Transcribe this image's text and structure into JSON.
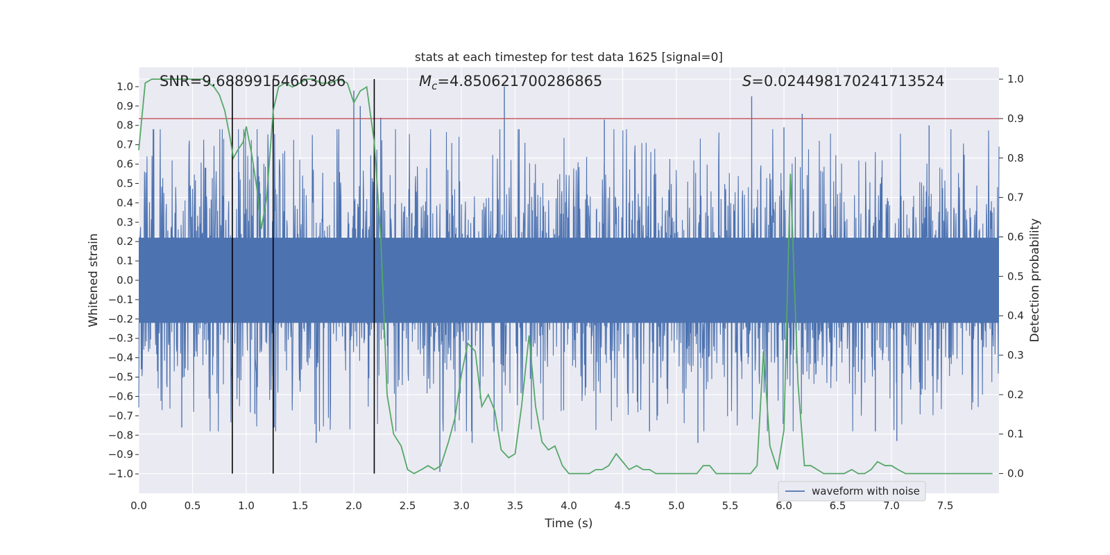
{
  "chart_data": {
    "type": "line",
    "title": "stats at each timestep for test data 1625 [signal=0]",
    "xlabel": "Time (s)",
    "ylabel": "Whitened strain",
    "y2label": "Detection probability",
    "xlim": [
      0.0,
      8.0
    ],
    "ylim": [
      -1.1,
      1.1
    ],
    "y2lim": [
      -0.05,
      1.03
    ],
    "xticks": [
      "0.0",
      "0.5",
      "1.0",
      "1.5",
      "2.0",
      "2.5",
      "3.0",
      "3.5",
      "4.0",
      "4.5",
      "5.0",
      "5.5",
      "6.0",
      "6.5",
      "7.0",
      "7.5"
    ],
    "yticks": [
      "1.0",
      "0.9",
      "0.8",
      "0.7",
      "0.6",
      "0.5",
      "0.4",
      "0.3",
      "0.2",
      "0.1",
      "0.0",
      "−0.1",
      "−0.2",
      "−0.3",
      "−0.4",
      "−0.5",
      "−0.6",
      "−0.7",
      "−0.8",
      "−0.9",
      "−1.0"
    ],
    "y2ticks": [
      "1.0",
      "0.9",
      "0.8",
      "0.7",
      "0.6",
      "0.5",
      "0.4",
      "0.3",
      "0.2",
      "0.1",
      "0.0"
    ],
    "grid": true,
    "legend": {
      "position": "bottom-right",
      "entries": [
        "waveform with noise"
      ]
    },
    "annotations": {
      "snr": "SNR=9.68899154663086",
      "mc_symbol": "M",
      "mc_sub": "c",
      "mc_value": "=4.850621700286865",
      "s_symbol": "S",
      "s_value": "=0.024498170241713524"
    },
    "threshold": {
      "value": 0.9,
      "axis": "y2",
      "color": "#c44e52"
    },
    "vertical_markers": [
      0.87,
      1.25,
      2.19
    ],
    "series": [
      {
        "name": "waveform with noise",
        "axis": "y",
        "color": "#4c72b0",
        "kind": "noise",
        "samples": 2400,
        "envelope_sigma": 0.32,
        "spikes": [
          {
            "x": 0.4,
            "y": -0.76
          },
          {
            "x": 0.87,
            "y": 0.53
          },
          {
            "x": 1.08,
            "y": -0.69
          },
          {
            "x": 1.26,
            "y": -0.76
          },
          {
            "x": 1.65,
            "y": -0.84
          },
          {
            "x": 2.0,
            "y": 0.98
          },
          {
            "x": 2.06,
            "y": 0.9
          },
          {
            "x": 2.25,
            "y": 0.84
          },
          {
            "x": 2.8,
            "y": -0.99
          },
          {
            "x": 3.1,
            "y": -0.84
          },
          {
            "x": 3.4,
            "y": 1.0
          },
          {
            "x": 4.33,
            "y": 0.83
          },
          {
            "x": 4.75,
            "y": -0.78
          },
          {
            "x": 5.2,
            "y": -0.84
          },
          {
            "x": 5.7,
            "y": 0.95
          },
          {
            "x": 6.0,
            "y": 0.79
          },
          {
            "x": 6.17,
            "y": 0.86
          },
          {
            "x": 6.85,
            "y": -0.78
          },
          {
            "x": 7.05,
            "y": -0.83
          },
          {
            "x": 7.35,
            "y": 0.8
          }
        ]
      },
      {
        "name": "detection probability",
        "axis": "y2",
        "color": "#55a868",
        "x": [
          0.0,
          0.06,
          0.12,
          0.2,
          0.3,
          0.4,
          0.5,
          0.6,
          0.65,
          0.7,
          0.75,
          0.8,
          0.85,
          0.88,
          0.92,
          0.97,
          1.0,
          1.05,
          1.1,
          1.14,
          1.19,
          1.25,
          1.3,
          1.36,
          1.43,
          1.5,
          1.56,
          1.62,
          1.7,
          1.78,
          1.86,
          1.94,
          2.0,
          2.06,
          2.12,
          2.19,
          2.25,
          2.31,
          2.37,
          2.44,
          2.5,
          2.56,
          2.63,
          2.69,
          2.75,
          2.81,
          2.88,
          2.94,
          3.0,
          3.06,
          3.13,
          3.19,
          3.25,
          3.31,
          3.37,
          3.44,
          3.5,
          3.56,
          3.63,
          3.69,
          3.75,
          3.81,
          3.87,
          3.94,
          4.0,
          4.06,
          4.13,
          4.19,
          4.25,
          4.31,
          4.37,
          4.44,
          4.5,
          4.56,
          4.63,
          4.69,
          4.75,
          4.81,
          4.87,
          4.94,
          5.0,
          5.06,
          5.13,
          5.19,
          5.25,
          5.31,
          5.37,
          5.44,
          5.5,
          5.56,
          5.63,
          5.69,
          5.75,
          5.81,
          5.87,
          5.94,
          6.0,
          6.06,
          6.13,
          6.19,
          6.25,
          6.31,
          6.37,
          6.44,
          6.5,
          6.56,
          6.63,
          6.69,
          6.75,
          6.81,
          6.87,
          6.94,
          7.0,
          7.06,
          7.13,
          7.19,
          7.25,
          7.31,
          7.37,
          7.44,
          7.5,
          7.56,
          7.63,
          7.69,
          7.75,
          7.81,
          7.87,
          7.94
        ],
        "y": [
          0.82,
          0.99,
          1.0,
          1.0,
          1.0,
          1.0,
          1.0,
          1.0,
          0.99,
          0.98,
          0.96,
          0.92,
          0.85,
          0.8,
          0.82,
          0.84,
          0.88,
          0.81,
          0.72,
          0.62,
          0.7,
          0.92,
          0.98,
          0.99,
          0.98,
          0.99,
          1.0,
          1.0,
          0.99,
          0.99,
          1.0,
          0.99,
          0.94,
          0.97,
          0.98,
          0.84,
          0.6,
          0.2,
          0.1,
          0.07,
          0.01,
          0.0,
          0.01,
          0.02,
          0.01,
          0.02,
          0.08,
          0.14,
          0.25,
          0.33,
          0.31,
          0.17,
          0.2,
          0.16,
          0.06,
          0.04,
          0.05,
          0.17,
          0.35,
          0.17,
          0.08,
          0.06,
          0.07,
          0.02,
          0.0,
          0.0,
          0.0,
          0.0,
          0.01,
          0.01,
          0.02,
          0.05,
          0.03,
          0.01,
          0.02,
          0.01,
          0.01,
          0.0,
          0.0,
          0.0,
          0.0,
          0.0,
          0.0,
          0.0,
          0.02,
          0.02,
          0.0,
          0.0,
          0.0,
          0.0,
          0.0,
          0.0,
          0.02,
          0.31,
          0.07,
          0.01,
          0.11,
          0.76,
          0.23,
          0.02,
          0.02,
          0.01,
          0.0,
          0.0,
          0.0,
          0.0,
          0.01,
          0.0,
          0.0,
          0.01,
          0.03,
          0.02,
          0.02,
          0.01,
          0.0,
          0.0,
          0.0,
          0.0,
          0.0,
          0.0,
          0.0,
          0.0,
          0.0,
          0.0,
          0.0,
          0.0,
          0.0,
          0.0
        ]
      }
    ]
  }
}
